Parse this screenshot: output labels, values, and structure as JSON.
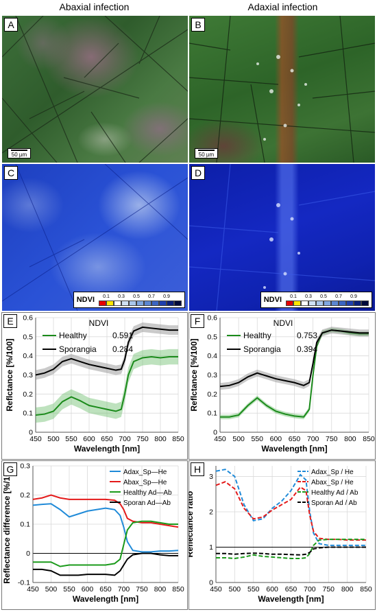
{
  "column_titles": {
    "left": "Abaxial infection",
    "right": "Adaxial infection"
  },
  "panels": {
    "A": "A",
    "B": "B",
    "C": "C",
    "D": "D",
    "E": "E",
    "F": "F",
    "G": "G",
    "H": "H"
  },
  "scale_bar": "50 µm",
  "ndvi_legend": {
    "label": "NDVI",
    "ticks": [
      "0.1",
      "0.3",
      "0.5",
      "0.7",
      "0.9"
    ],
    "colors": [
      "#e60000",
      "#ffe600",
      "#ffffff",
      "#cfe0f3",
      "#a9c6ea",
      "#7fa6df",
      "#5b86d1",
      "#3a64c2",
      "#1f3fae",
      "#0a1f7a",
      "#000a3a"
    ]
  },
  "chart_data": [
    {
      "panel": "E",
      "type": "line",
      "xlabel": "Wavelength  [nm]",
      "ylabel": "Reflctance [%/100]",
      "xlim": [
        450,
        850
      ],
      "ylim": [
        0,
        0.6
      ],
      "xticks": [
        450,
        500,
        550,
        600,
        650,
        700,
        750,
        800,
        850
      ],
      "yticks": [
        0,
        0.1,
        0.2,
        0.3,
        0.4,
        0.5,
        0.6
      ],
      "legend_title": "NDVI",
      "x": [
        450,
        475,
        500,
        525,
        550,
        575,
        600,
        625,
        650,
        675,
        690,
        700,
        710,
        725,
        750,
        775,
        800,
        825,
        850
      ],
      "series": [
        {
          "name": "Healthy",
          "ndvi": "0.591",
          "color": "#1a8a1a",
          "band": 0.04,
          "values": [
            0.09,
            0.095,
            0.11,
            0.16,
            0.185,
            0.165,
            0.14,
            0.13,
            0.12,
            0.11,
            0.12,
            0.2,
            0.3,
            0.37,
            0.39,
            0.395,
            0.39,
            0.395,
            0.395
          ]
        },
        {
          "name": "Sporangia",
          "ndvi": "0.284",
          "color": "#000000",
          "band": 0.025,
          "values": [
            0.3,
            0.31,
            0.33,
            0.37,
            0.385,
            0.37,
            0.355,
            0.345,
            0.335,
            0.325,
            0.33,
            0.38,
            0.47,
            0.53,
            0.55,
            0.545,
            0.54,
            0.535,
            0.535
          ]
        }
      ]
    },
    {
      "panel": "F",
      "type": "line",
      "xlabel": "Wavelength  [nm]",
      "ylabel": "Reflctance [%/100]",
      "xlim": [
        450,
        850
      ],
      "ylim": [
        0,
        0.6
      ],
      "xticks": [
        450,
        500,
        550,
        600,
        650,
        700,
        750,
        800,
        850
      ],
      "yticks": [
        0,
        0.1,
        0.2,
        0.3,
        0.4,
        0.5,
        0.6
      ],
      "legend_title": "NDVI",
      "x": [
        450,
        475,
        500,
        525,
        550,
        575,
        600,
        625,
        650,
        675,
        690,
        700,
        710,
        725,
        750,
        775,
        800,
        825,
        850
      ],
      "series": [
        {
          "name": "Healthy",
          "ndvi": "0.753",
          "color": "#1a8a1a",
          "band": 0.012,
          "values": [
            0.08,
            0.08,
            0.09,
            0.14,
            0.18,
            0.14,
            0.11,
            0.095,
            0.085,
            0.08,
            0.12,
            0.3,
            0.45,
            0.52,
            0.535,
            0.53,
            0.52,
            0.515,
            0.515
          ]
        },
        {
          "name": "Sporangia",
          "ndvi": "0.394",
          "color": "#000000",
          "band": 0.018,
          "values": [
            0.24,
            0.245,
            0.26,
            0.29,
            0.31,
            0.295,
            0.28,
            0.27,
            0.26,
            0.245,
            0.26,
            0.36,
            0.47,
            0.52,
            0.535,
            0.53,
            0.525,
            0.52,
            0.52
          ]
        }
      ]
    },
    {
      "panel": "G",
      "type": "line",
      "xlabel": "Wavelength  [nm]",
      "ylabel": "Reflectance difference  [%/100]",
      "xlim": [
        450,
        850
      ],
      "ylim": [
        -0.1,
        0.3
      ],
      "xticks": [
        450,
        500,
        550,
        600,
        650,
        700,
        750,
        800,
        850
      ],
      "yticks": [
        -0.1,
        0,
        0.1,
        0.2,
        0.3
      ],
      "dashed": false,
      "x": [
        450,
        475,
        500,
        525,
        550,
        575,
        600,
        625,
        650,
        675,
        690,
        700,
        710,
        725,
        750,
        775,
        800,
        825,
        850
      ],
      "series": [
        {
          "name": "Adax_Sp—He",
          "color": "#1f8ad8",
          "values": [
            0.165,
            0.168,
            0.17,
            0.15,
            0.125,
            0.135,
            0.145,
            0.15,
            0.155,
            0.15,
            0.13,
            0.09,
            0.04,
            0.01,
            0.005,
            0.005,
            0.008,
            0.008,
            0.01
          ]
        },
        {
          "name": "Abax_Sp—He",
          "color": "#e41a1a",
          "values": [
            0.185,
            0.19,
            0.2,
            0.19,
            0.185,
            0.185,
            0.185,
            0.185,
            0.185,
            0.182,
            0.17,
            0.15,
            0.12,
            0.11,
            0.105,
            0.105,
            0.1,
            0.095,
            0.09
          ]
        },
        {
          "name": "Healthy Ad—Ab",
          "color": "#1a9a1a",
          "values": [
            -0.03,
            -0.03,
            -0.03,
            -0.045,
            -0.04,
            -0.04,
            -0.04,
            -0.04,
            -0.04,
            -0.035,
            -0.02,
            0.03,
            0.08,
            0.105,
            0.11,
            0.11,
            0.105,
            0.1,
            0.1
          ]
        },
        {
          "name": "Sporan Ad—Ab",
          "color": "#000000",
          "values": [
            -0.055,
            -0.055,
            -0.06,
            -0.075,
            -0.075,
            -0.075,
            -0.072,
            -0.072,
            -0.072,
            -0.075,
            -0.06,
            -0.04,
            -0.02,
            -0.005,
            0.0,
            0.0,
            -0.005,
            -0.008,
            -0.008
          ]
        }
      ]
    },
    {
      "panel": "H",
      "type": "line",
      "xlabel": "Wavelength  [nm]",
      "ylabel": "Reflectance ratio",
      "xlim": [
        450,
        850
      ],
      "ylim": [
        0,
        3.3
      ],
      "xticks": [
        450,
        500,
        550,
        600,
        650,
        700,
        750,
        800,
        850
      ],
      "yticks": [
        0,
        1,
        2,
        3
      ],
      "dashed": true,
      "reference_line": 1,
      "x": [
        450,
        475,
        500,
        525,
        550,
        575,
        600,
        625,
        650,
        675,
        690,
        700,
        710,
        725,
        750,
        775,
        800,
        825,
        850
      ],
      "series": [
        {
          "name": "Adax_Sp  / He",
          "color": "#1f8ad8",
          "values": [
            3.15,
            3.2,
            3.0,
            2.2,
            1.75,
            1.8,
            2.1,
            2.3,
            2.6,
            3.05,
            2.9,
            2.0,
            1.4,
            1.1,
            1.05,
            1.05,
            1.05,
            1.05,
            1.05
          ]
        },
        {
          "name": "Abax_Sp  / He",
          "color": "#e41a1a",
          "values": [
            2.75,
            2.85,
            2.65,
            2.1,
            1.8,
            1.85,
            2.05,
            2.2,
            2.35,
            2.7,
            2.6,
            1.9,
            1.45,
            1.25,
            1.22,
            1.22,
            1.2,
            1.2,
            1.2
          ]
        },
        {
          "name": "Healthy Ad / Ab",
          "color": "#1a9a1a",
          "values": [
            0.7,
            0.7,
            0.68,
            0.72,
            0.78,
            0.74,
            0.72,
            0.7,
            0.68,
            0.68,
            0.7,
            0.82,
            1.05,
            1.2,
            1.22,
            1.22,
            1.22,
            1.22,
            1.22
          ]
        },
        {
          "name": "Sporan Ad / Ab",
          "color": "#000000",
          "values": [
            0.82,
            0.82,
            0.8,
            0.82,
            0.83,
            0.82,
            0.8,
            0.8,
            0.79,
            0.78,
            0.8,
            0.85,
            0.95,
            0.98,
            1.0,
            1.0,
            1.0,
            1.0,
            1.0
          ]
        }
      ]
    }
  ]
}
